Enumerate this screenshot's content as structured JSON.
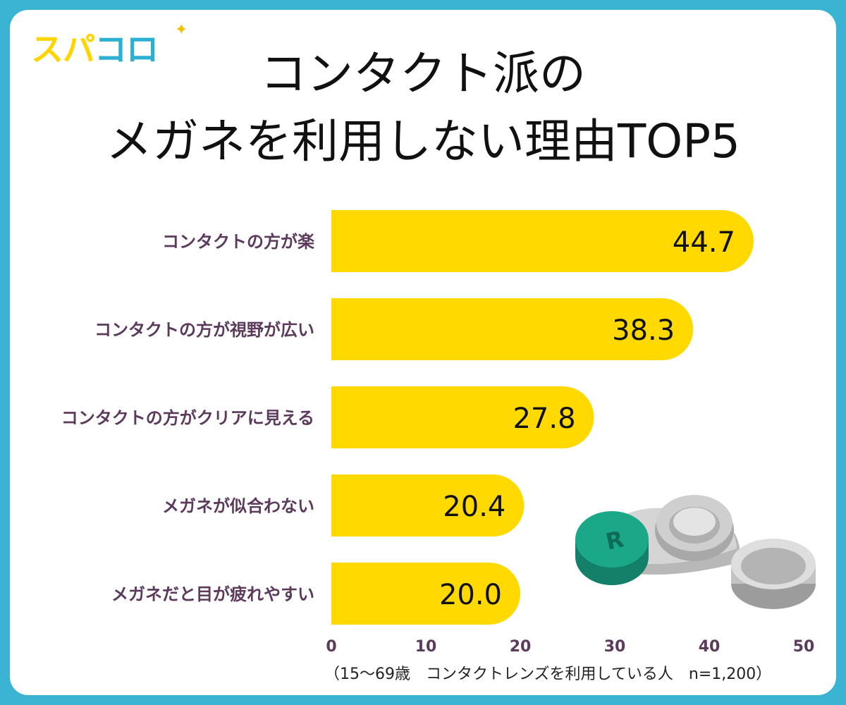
{
  "logo": {
    "text_yellow": "スパ",
    "text_blue": "コロ"
  },
  "chart_data": {
    "type": "bar",
    "orientation": "horizontal",
    "title_line1": "コンタクト派の",
    "title_line2": "メガネを利用しない理由TOP5",
    "categories": [
      "コンタクトの方が楽",
      "コンタクトの方が視野が広い",
      "コンタクトの方がクリアに見える",
      "メガネが似合わない",
      "メガネだと目が疲れやすい"
    ],
    "values": [
      44.7,
      38.3,
      27.8,
      20.4,
      20.0
    ],
    "value_labels": [
      "44.7",
      "38.3",
      "27.8",
      "20.4",
      "20.0"
    ],
    "xlim": [
      0,
      50
    ],
    "xticks": [
      0,
      10,
      20,
      30,
      40,
      50
    ],
    "xlabel": "",
    "ylabel": "",
    "grid": false,
    "colors": {
      "bar": "#ffd900",
      "category_label": "#5b3a5b",
      "tick": "#5b3a5b",
      "background": "#3bb4d4"
    }
  },
  "footnote": "（15〜69歳　コンタクトレンズを利用している人　n=1,200）"
}
